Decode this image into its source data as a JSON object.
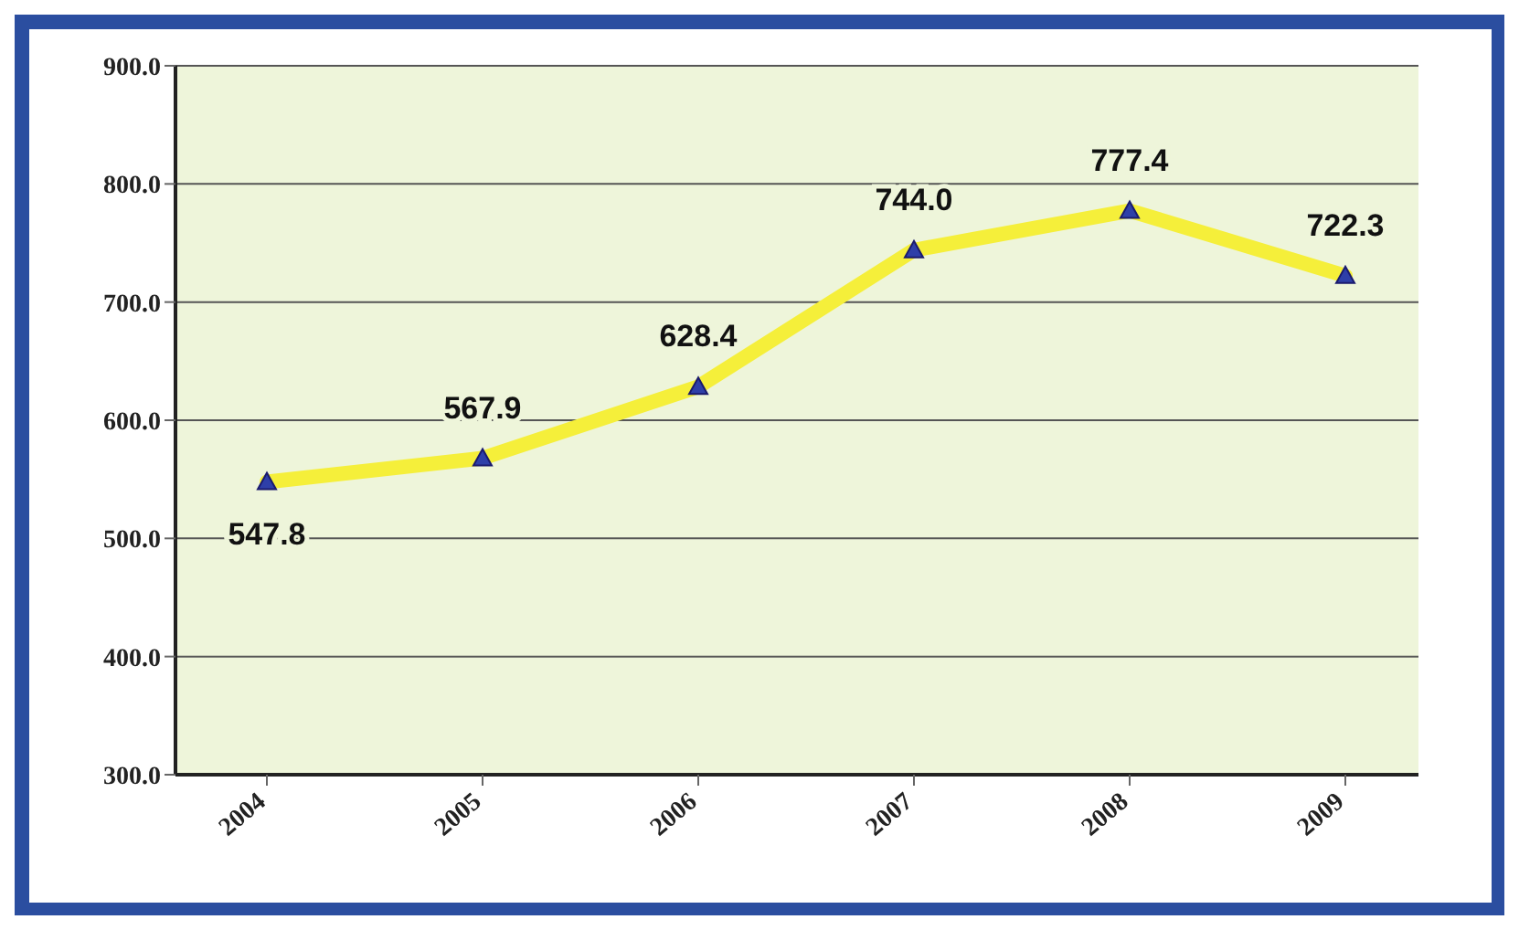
{
  "chart_data": {
    "type": "line",
    "categories": [
      "2004",
      "2005",
      "2006",
      "2007",
      "2008",
      "2009"
    ],
    "series": [
      {
        "color": "#f5ef3a",
        "values": [
          547.8,
          567.9,
          628.4,
          744.0,
          777.4,
          722.3
        ],
        "value_labels": [
          "547.8",
          "567.9",
          "628.4",
          "744.0",
          "777.4",
          "722.3"
        ]
      }
    ],
    "ylim": [
      300,
      900
    ],
    "yticks": [
      {
        "value": 300,
        "label": "300.0"
      },
      {
        "value": 400,
        "label": "400.0"
      },
      {
        "value": 500,
        "label": "500.0"
      },
      {
        "value": 600,
        "label": "600.0"
      },
      {
        "value": 700,
        "label": "700.0"
      },
      {
        "value": 800,
        "label": "800.0"
      },
      {
        "value": 900,
        "label": "900.0"
      }
    ],
    "grid": "y",
    "marker": "triangle",
    "legend": false
  }
}
